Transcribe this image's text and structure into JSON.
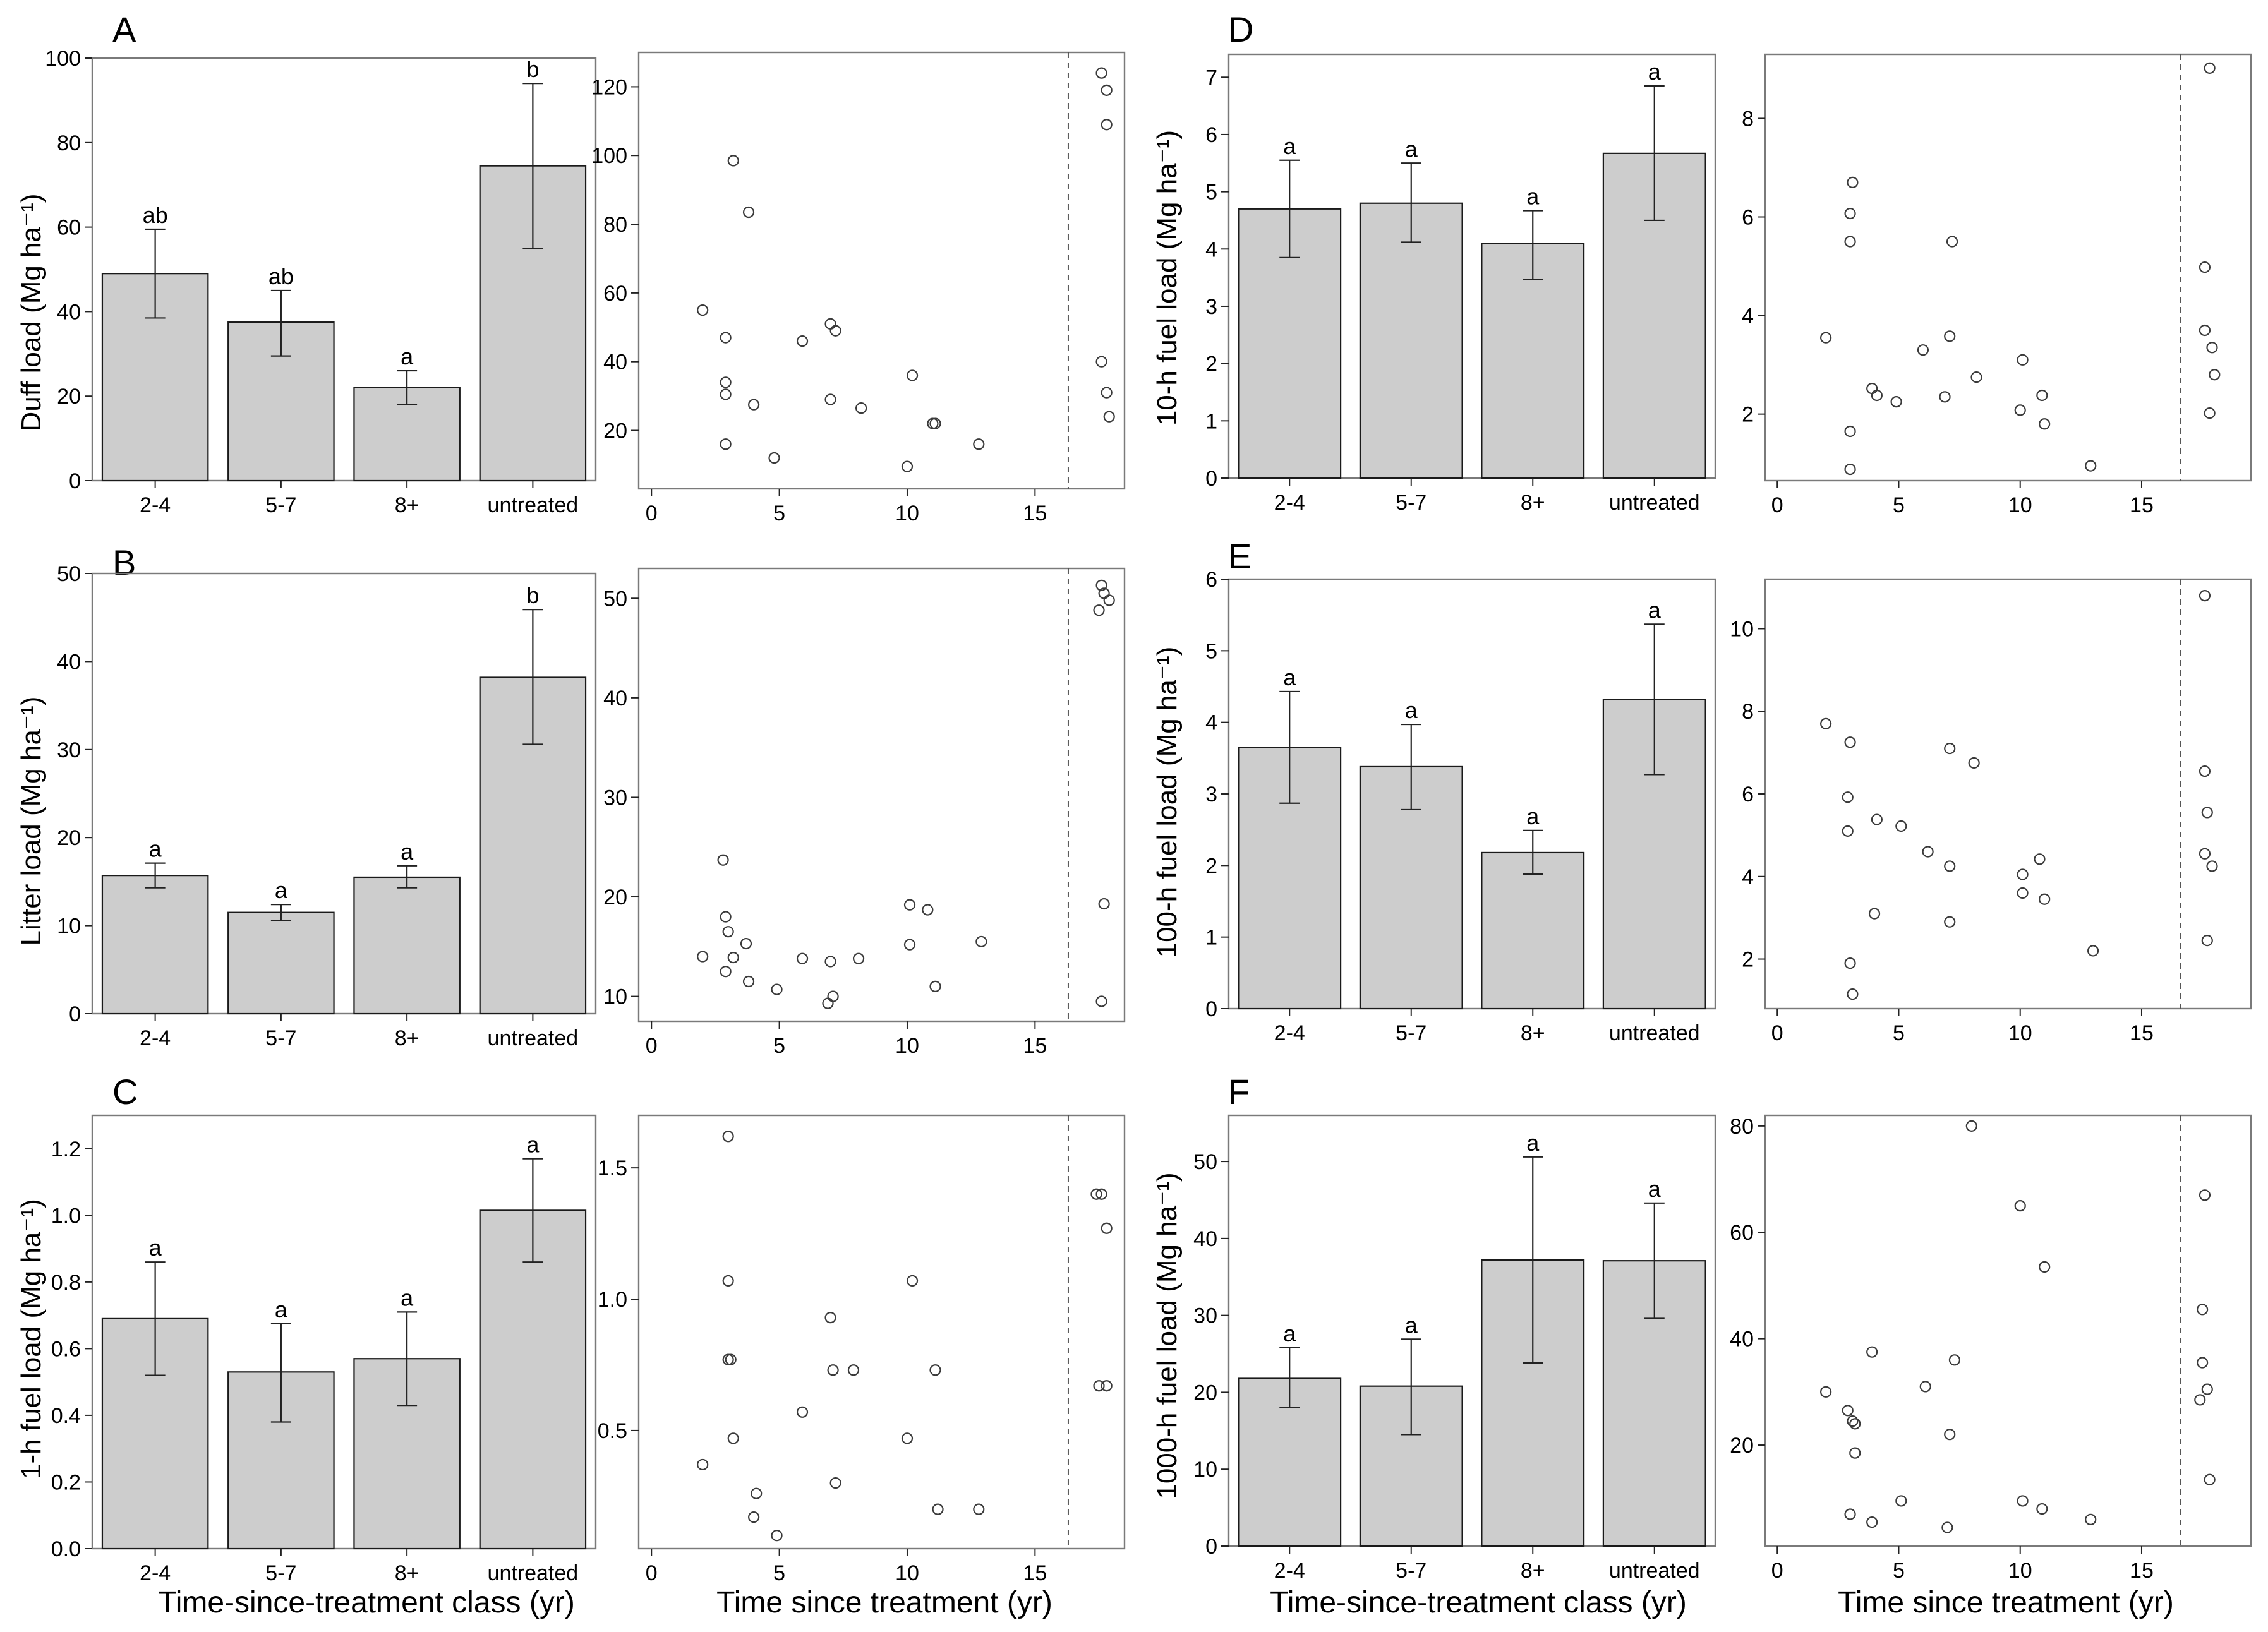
{
  "chart_data": [
    {
      "panel": "A",
      "type": "bar",
      "title": "A",
      "ylabel": "Duff load (Mg ha⁻¹)",
      "xlabel": "",
      "categories": [
        "2-4",
        "5-7",
        "8+",
        "untreated"
      ],
      "values": [
        49,
        37.5,
        22,
        74.5
      ],
      "err_low": [
        38.5,
        29.5,
        18,
        55
      ],
      "err_high": [
        59.5,
        45,
        26,
        94
      ],
      "letters": [
        "ab",
        "ab",
        "a",
        "b"
      ],
      "ylim": [
        0,
        100
      ],
      "yticks": [
        0,
        20,
        40,
        60,
        80,
        100
      ],
      "ytick_labels": [
        "0",
        "20",
        "40",
        "60",
        "80",
        "100"
      ]
    },
    {
      "panel": "A",
      "type": "scatter",
      "xlabel": "",
      "ylabel": "",
      "xlim": [
        -0.5,
        18.5
      ],
      "ylim": [
        3,
        130
      ],
      "xticks": [
        0,
        5,
        10,
        15
      ],
      "xtick_labels": [
        "0",
        "5",
        "10",
        "15"
      ],
      "yticks": [
        20,
        40,
        60,
        80,
        100,
        120
      ],
      "ytick_labels": [
        "20",
        "40",
        "60",
        "80",
        "100",
        "120"
      ],
      "vline": 16.3,
      "points": [
        [
          2,
          55
        ],
        [
          2.9,
          47
        ],
        [
          2.9,
          34
        ],
        [
          2.9,
          30.5
        ],
        [
          2.9,
          16
        ],
        [
          3.2,
          98.5
        ],
        [
          3.8,
          83.5
        ],
        [
          4,
          27.5
        ],
        [
          4.8,
          12
        ],
        [
          5.9,
          46
        ],
        [
          7,
          51
        ],
        [
          7,
          29
        ],
        [
          7.2,
          49
        ],
        [
          8.2,
          26.5
        ],
        [
          10,
          9.5
        ],
        [
          10.2,
          36
        ],
        [
          11,
          22
        ],
        [
          11.1,
          22
        ],
        [
          12.8,
          16
        ],
        [
          17.6,
          124
        ],
        [
          17.8,
          119
        ],
        [
          17.8,
          109
        ],
        [
          17.6,
          40
        ],
        [
          17.8,
          31
        ],
        [
          17.9,
          24
        ]
      ]
    },
    {
      "panel": "B",
      "type": "bar",
      "title": "B",
      "ylabel": "Litter load (Mg ha⁻¹)",
      "xlabel": "",
      "categories": [
        "2-4",
        "5-7",
        "8+",
        "untreated"
      ],
      "values": [
        15.7,
        11.5,
        15.5,
        38.2
      ],
      "err_low": [
        14.3,
        10.6,
        14.3,
        30.6
      ],
      "err_high": [
        17.1,
        12.4,
        16.8,
        45.9
      ],
      "letters": [
        "a",
        "a",
        "a",
        "b"
      ],
      "ylim": [
        0,
        50
      ],
      "yticks": [
        0,
        10,
        20,
        30,
        40,
        50
      ],
      "ytick_labels": [
        "0",
        "10",
        "20",
        "30",
        "40",
        "50"
      ]
    },
    {
      "panel": "B",
      "type": "scatter",
      "xlabel": "",
      "ylabel": "",
      "xlim": [
        -0.5,
        18.5
      ],
      "ylim": [
        7.5,
        53
      ],
      "xticks": [
        0,
        5,
        10,
        15
      ],
      "xtick_labels": [
        "0",
        "5",
        "10",
        "15"
      ],
      "yticks": [
        10,
        20,
        30,
        40,
        50
      ],
      "ytick_labels": [
        "10",
        "20",
        "30",
        "40",
        "50"
      ],
      "vline": 16.3,
      "points": [
        [
          2,
          14
        ],
        [
          2.8,
          23.7
        ],
        [
          2.9,
          18
        ],
        [
          3,
          16.5
        ],
        [
          2.9,
          12.5
        ],
        [
          3.2,
          13.9
        ],
        [
          3.7,
          15.3
        ],
        [
          3.8,
          11.5
        ],
        [
          4.9,
          10.7
        ],
        [
          5.9,
          13.8
        ],
        [
          7,
          13.5
        ],
        [
          7.1,
          10
        ],
        [
          6.9,
          9.3
        ],
        [
          8.1,
          13.8
        ],
        [
          10.1,
          19.2
        ],
        [
          10.1,
          15.2
        ],
        [
          10.8,
          18.7
        ],
        [
          11.1,
          11
        ],
        [
          12.9,
          15.5
        ],
        [
          17.6,
          51.3
        ],
        [
          17.7,
          50.5
        ],
        [
          17.9,
          49.8
        ],
        [
          17.5,
          48.8
        ],
        [
          17.7,
          19.3
        ],
        [
          17.6,
          9.5
        ]
      ]
    },
    {
      "panel": "C",
      "type": "bar",
      "title": "C",
      "ylabel": "1-h fuel load (Mg ha⁻¹)",
      "xlabel": "Time-since-treatment class (yr)",
      "categories": [
        "2-4",
        "5-7",
        "8+",
        "untreated"
      ],
      "values": [
        0.69,
        0.53,
        0.57,
        1.015
      ],
      "err_low": [
        0.52,
        0.38,
        0.43,
        0.86
      ],
      "err_high": [
        0.86,
        0.675,
        0.71,
        1.17
      ],
      "letters": [
        "a",
        "a",
        "a",
        "a"
      ],
      "ylim": [
        0,
        1.3
      ],
      "yticks": [
        0,
        0.2,
        0.4,
        0.6,
        0.8,
        1.0,
        1.2
      ],
      "ytick_labels": [
        "0.0",
        "0.2",
        "0.4",
        "0.6",
        "0.8",
        "1.0",
        "1.2"
      ]
    },
    {
      "panel": "C",
      "type": "scatter",
      "xlabel": "Time since treatment (yr)",
      "ylabel": "",
      "xlim": [
        -0.5,
        18.5
      ],
      "ylim": [
        0.05,
        1.7
      ],
      "xticks": [
        0,
        5,
        10,
        15
      ],
      "xtick_labels": [
        "0",
        "5",
        "10",
        "15"
      ],
      "yticks": [
        0.5,
        1.0,
        1.5
      ],
      "ytick_labels": [
        "0.5",
        "1.0",
        "1.5"
      ],
      "vline": 16.3,
      "points": [
        [
          2,
          0.37
        ],
        [
          3,
          1.62
        ],
        [
          3,
          1.07
        ],
        [
          3,
          0.77
        ],
        [
          3.1,
          0.77
        ],
        [
          3.2,
          0.47
        ],
        [
          4.1,
          0.26
        ],
        [
          4,
          0.17
        ],
        [
          4.9,
          0.1
        ],
        [
          5.9,
          0.57
        ],
        [
          7,
          0.93
        ],
        [
          7.1,
          0.73
        ],
        [
          7.2,
          0.3
        ],
        [
          7.9,
          0.73
        ],
        [
          10,
          0.47
        ],
        [
          10.2,
          1.07
        ],
        [
          11.1,
          0.73
        ],
        [
          11.2,
          0.2
        ],
        [
          12.8,
          0.2
        ],
        [
          17.4,
          1.4
        ],
        [
          17.6,
          1.4
        ],
        [
          17.8,
          1.27
        ],
        [
          17.5,
          0.67
        ],
        [
          17.8,
          0.67
        ]
      ]
    },
    {
      "panel": "D",
      "type": "bar",
      "title": "D",
      "ylabel": "10-h fuel load (Mg ha⁻¹)",
      "xlabel": "",
      "categories": [
        "2-4",
        "5-7",
        "8+",
        "untreated"
      ],
      "values": [
        4.7,
        4.8,
        4.1,
        5.67
      ],
      "err_low": [
        3.85,
        4.12,
        3.47,
        4.5
      ],
      "err_high": [
        5.55,
        5.5,
        4.67,
        6.85
      ],
      "letters": [
        "a",
        "a",
        "a",
        "a"
      ],
      "ylim": [
        0,
        7.4
      ],
      "yticks": [
        0,
        1,
        2,
        3,
        4,
        5,
        6,
        7
      ],
      "ytick_labels": [
        "0",
        "1",
        "2",
        "3",
        "4",
        "5",
        "6",
        "7"
      ]
    },
    {
      "panel": "D",
      "type": "scatter",
      "xlabel": "",
      "ylabel": "",
      "xlim": [
        -0.5,
        19.5
      ],
      "ylim": [
        0.65,
        9.3
      ],
      "xticks": [
        0,
        5,
        10,
        15
      ],
      "xtick_labels": [
        "0",
        "5",
        "10",
        "15"
      ],
      "yticks": [
        2,
        4,
        6,
        8
      ],
      "ytick_labels": [
        "2",
        "4",
        "6",
        "8"
      ],
      "vline": 16.6,
      "points": [
        [
          2,
          3.55
        ],
        [
          3.1,
          6.7
        ],
        [
          3,
          6.07
        ],
        [
          3,
          5.5
        ],
        [
          3,
          1.65
        ],
        [
          3,
          0.88
        ],
        [
          3.9,
          2.52
        ],
        [
          4.1,
          2.38
        ],
        [
          4.9,
          2.25
        ],
        [
          6,
          3.3
        ],
        [
          6.9,
          2.35
        ],
        [
          7.1,
          3.58
        ],
        [
          7.2,
          5.5
        ],
        [
          8.2,
          2.75
        ],
        [
          10,
          2.08
        ],
        [
          10.1,
          3.1
        ],
        [
          10.9,
          2.38
        ],
        [
          11,
          1.8
        ],
        [
          12.9,
          0.95
        ],
        [
          17.8,
          9.02
        ],
        [
          17.6,
          4.98
        ],
        [
          17.6,
          3.7
        ],
        [
          17.9,
          3.35
        ],
        [
          18.0,
          2.8
        ],
        [
          17.8,
          2.02
        ]
      ]
    },
    {
      "panel": "E",
      "type": "bar",
      "title": "E",
      "ylabel": "100-h fuel load (Mg ha⁻¹)",
      "xlabel": "",
      "categories": [
        "2-4",
        "5-7",
        "8+",
        "untreated"
      ],
      "values": [
        3.65,
        3.38,
        2.18,
        4.32
      ],
      "err_low": [
        2.87,
        2.78,
        1.88,
        3.27
      ],
      "err_high": [
        4.43,
        3.97,
        2.49,
        5.37
      ],
      "letters": [
        "a",
        "a",
        "a",
        "a"
      ],
      "ylim": [
        0,
        6
      ],
      "yticks": [
        0,
        1,
        2,
        3,
        4,
        5,
        6
      ],
      "ytick_labels": [
        "0",
        "1",
        "2",
        "3",
        "4",
        "5",
        "6"
      ]
    },
    {
      "panel": "E",
      "type": "scatter",
      "xlabel": "",
      "ylabel": "",
      "xlim": [
        -0.5,
        19.5
      ],
      "ylim": [
        0.8,
        11.2
      ],
      "xticks": [
        0,
        5,
        10,
        15
      ],
      "xtick_labels": [
        "0",
        "5",
        "10",
        "15"
      ],
      "yticks": [
        2,
        4,
        6,
        8,
        10
      ],
      "ytick_labels": [
        "2",
        "4",
        "6",
        "8",
        "10"
      ],
      "vline": 16.6,
      "points": [
        [
          2,
          7.7
        ],
        [
          3,
          7.25
        ],
        [
          2.9,
          5.92
        ],
        [
          2.9,
          5.1
        ],
        [
          3,
          1.9
        ],
        [
          3.1,
          1.15
        ],
        [
          4,
          3.1
        ],
        [
          4.1,
          5.38
        ],
        [
          5.1,
          5.22
        ],
        [
          6.2,
          4.6
        ],
        [
          7.1,
          7.1
        ],
        [
          7.1,
          4.25
        ],
        [
          7.1,
          2.9
        ],
        [
          8.1,
          6.75
        ],
        [
          10.1,
          4.05
        ],
        [
          10.1,
          3.6
        ],
        [
          10.8,
          4.42
        ],
        [
          11,
          3.45
        ],
        [
          13,
          2.2
        ],
        [
          17.6,
          10.8
        ],
        [
          17.6,
          6.55
        ],
        [
          17.7,
          5.55
        ],
        [
          17.6,
          4.55
        ],
        [
          17.9,
          4.25
        ],
        [
          17.7,
          2.45
        ]
      ]
    },
    {
      "panel": "F",
      "type": "bar",
      "title": "F",
      "ylabel": "1000-h fuel load (Mg ha⁻¹)",
      "xlabel": "Time-since-treatment class (yr)",
      "categories": [
        "2-4",
        "5-7",
        "8+",
        "untreated"
      ],
      "values": [
        21.8,
        20.8,
        37.2,
        37.1
      ],
      "err_low": [
        18,
        14.5,
        23.8,
        29.6
      ],
      "err_high": [
        25.8,
        26.9,
        50.6,
        44.6
      ],
      "letters": [
        "a",
        "a",
        "a",
        "a"
      ],
      "ylim": [
        0,
        56
      ],
      "yticks": [
        0,
        10,
        20,
        30,
        40,
        50
      ],
      "ytick_labels": [
        "0",
        "10",
        "20",
        "30",
        "40",
        "50"
      ]
    },
    {
      "panel": "F",
      "type": "scatter",
      "xlabel": "Time since treatment (yr)",
      "ylabel": "",
      "xlim": [
        -0.5,
        19.5
      ],
      "ylim": [
        1,
        82
      ],
      "xticks": [
        0,
        5,
        10,
        15
      ],
      "xtick_labels": [
        "0",
        "5",
        "10",
        "15"
      ],
      "yticks": [
        20,
        40,
        60,
        80
      ],
      "ytick_labels": [
        "20",
        "40",
        "60",
        "80"
      ],
      "vline": 16.6,
      "points": [
        [
          2,
          30
        ],
        [
          2.9,
          26.5
        ],
        [
          3.1,
          24.5
        ],
        [
          3.2,
          24
        ],
        [
          3.2,
          18.5
        ],
        [
          3,
          7
        ],
        [
          3.9,
          37.5
        ],
        [
          3.9,
          5.5
        ],
        [
          5.1,
          9.5
        ],
        [
          6.1,
          31
        ],
        [
          7,
          4.5
        ],
        [
          7.1,
          22
        ],
        [
          7.3,
          36
        ],
        [
          8,
          80
        ],
        [
          10,
          65
        ],
        [
          10.1,
          9.5
        ],
        [
          11,
          53.5
        ],
        [
          10.9,
          8
        ],
        [
          12.9,
          6
        ],
        [
          17.6,
          67
        ],
        [
          17.5,
          45.5
        ],
        [
          17.5,
          35.5
        ],
        [
          17.7,
          30.5
        ],
        [
          17.4,
          28.5
        ],
        [
          17.8,
          13.5
        ]
      ]
    }
  ]
}
